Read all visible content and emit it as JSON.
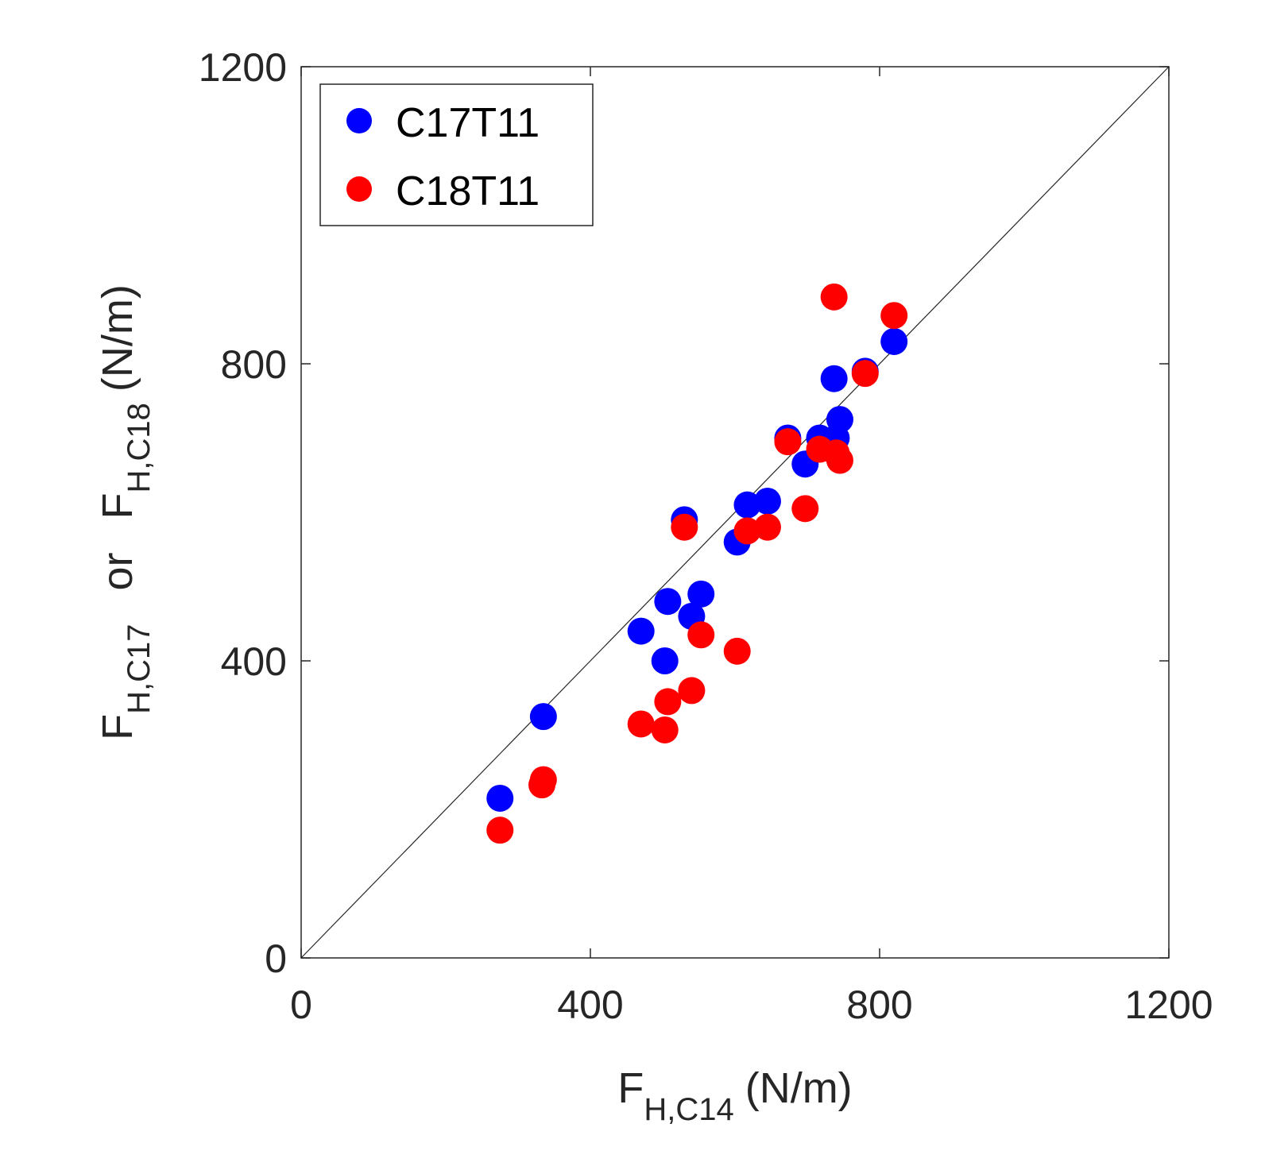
{
  "chart_data": {
    "type": "scatter",
    "title": "",
    "xlabel": {
      "main": "F",
      "sub": "H,C14",
      "unit": "(N/m)"
    },
    "ylabel": {
      "main1": "F",
      "sub1": "H,C17",
      "joiner": "or",
      "main2": "F",
      "sub2": "H,C18",
      "unit": "(N/m)"
    },
    "xlim": [
      0,
      1200
    ],
    "ylim": [
      0,
      1200
    ],
    "xticks": [
      0,
      400,
      800,
      1200
    ],
    "yticks": [
      0,
      400,
      800,
      1200
    ],
    "xtick_labels": [
      "0",
      "400",
      "800",
      "1200"
    ],
    "ytick_labels": [
      "0",
      "400",
      "800",
      "1200"
    ],
    "grid": false,
    "reference_line": "y = x",
    "legend_position": "top-left",
    "series": [
      {
        "name": "C17T11",
        "color": "#0000ff",
        "points": [
          [
            275,
            215
          ],
          [
            335,
            325
          ],
          [
            470,
            440
          ],
          [
            503,
            400
          ],
          [
            507,
            480
          ],
          [
            530,
            590
          ],
          [
            540,
            460
          ],
          [
            553,
            490
          ],
          [
            603,
            560
          ],
          [
            617,
            610
          ],
          [
            645,
            615
          ],
          [
            673,
            700
          ],
          [
            697,
            665
          ],
          [
            717,
            700
          ],
          [
            737,
            780
          ],
          [
            740,
            700
          ],
          [
            745,
            725
          ],
          [
            780,
            790
          ],
          [
            820,
            830
          ]
        ]
      },
      {
        "name": "C18T11",
        "color": "#ff0000",
        "points": [
          [
            275,
            172
          ],
          [
            333,
            233
          ],
          [
            335,
            240
          ],
          [
            470,
            315
          ],
          [
            503,
            307
          ],
          [
            507,
            345
          ],
          [
            530,
            580
          ],
          [
            540,
            360
          ],
          [
            553,
            435
          ],
          [
            603,
            413
          ],
          [
            617,
            575
          ],
          [
            645,
            580
          ],
          [
            673,
            695
          ],
          [
            697,
            605
          ],
          [
            717,
            685
          ],
          [
            737,
            890
          ],
          [
            740,
            680
          ],
          [
            745,
            670
          ],
          [
            780,
            787
          ],
          [
            820,
            865
          ]
        ]
      }
    ]
  }
}
